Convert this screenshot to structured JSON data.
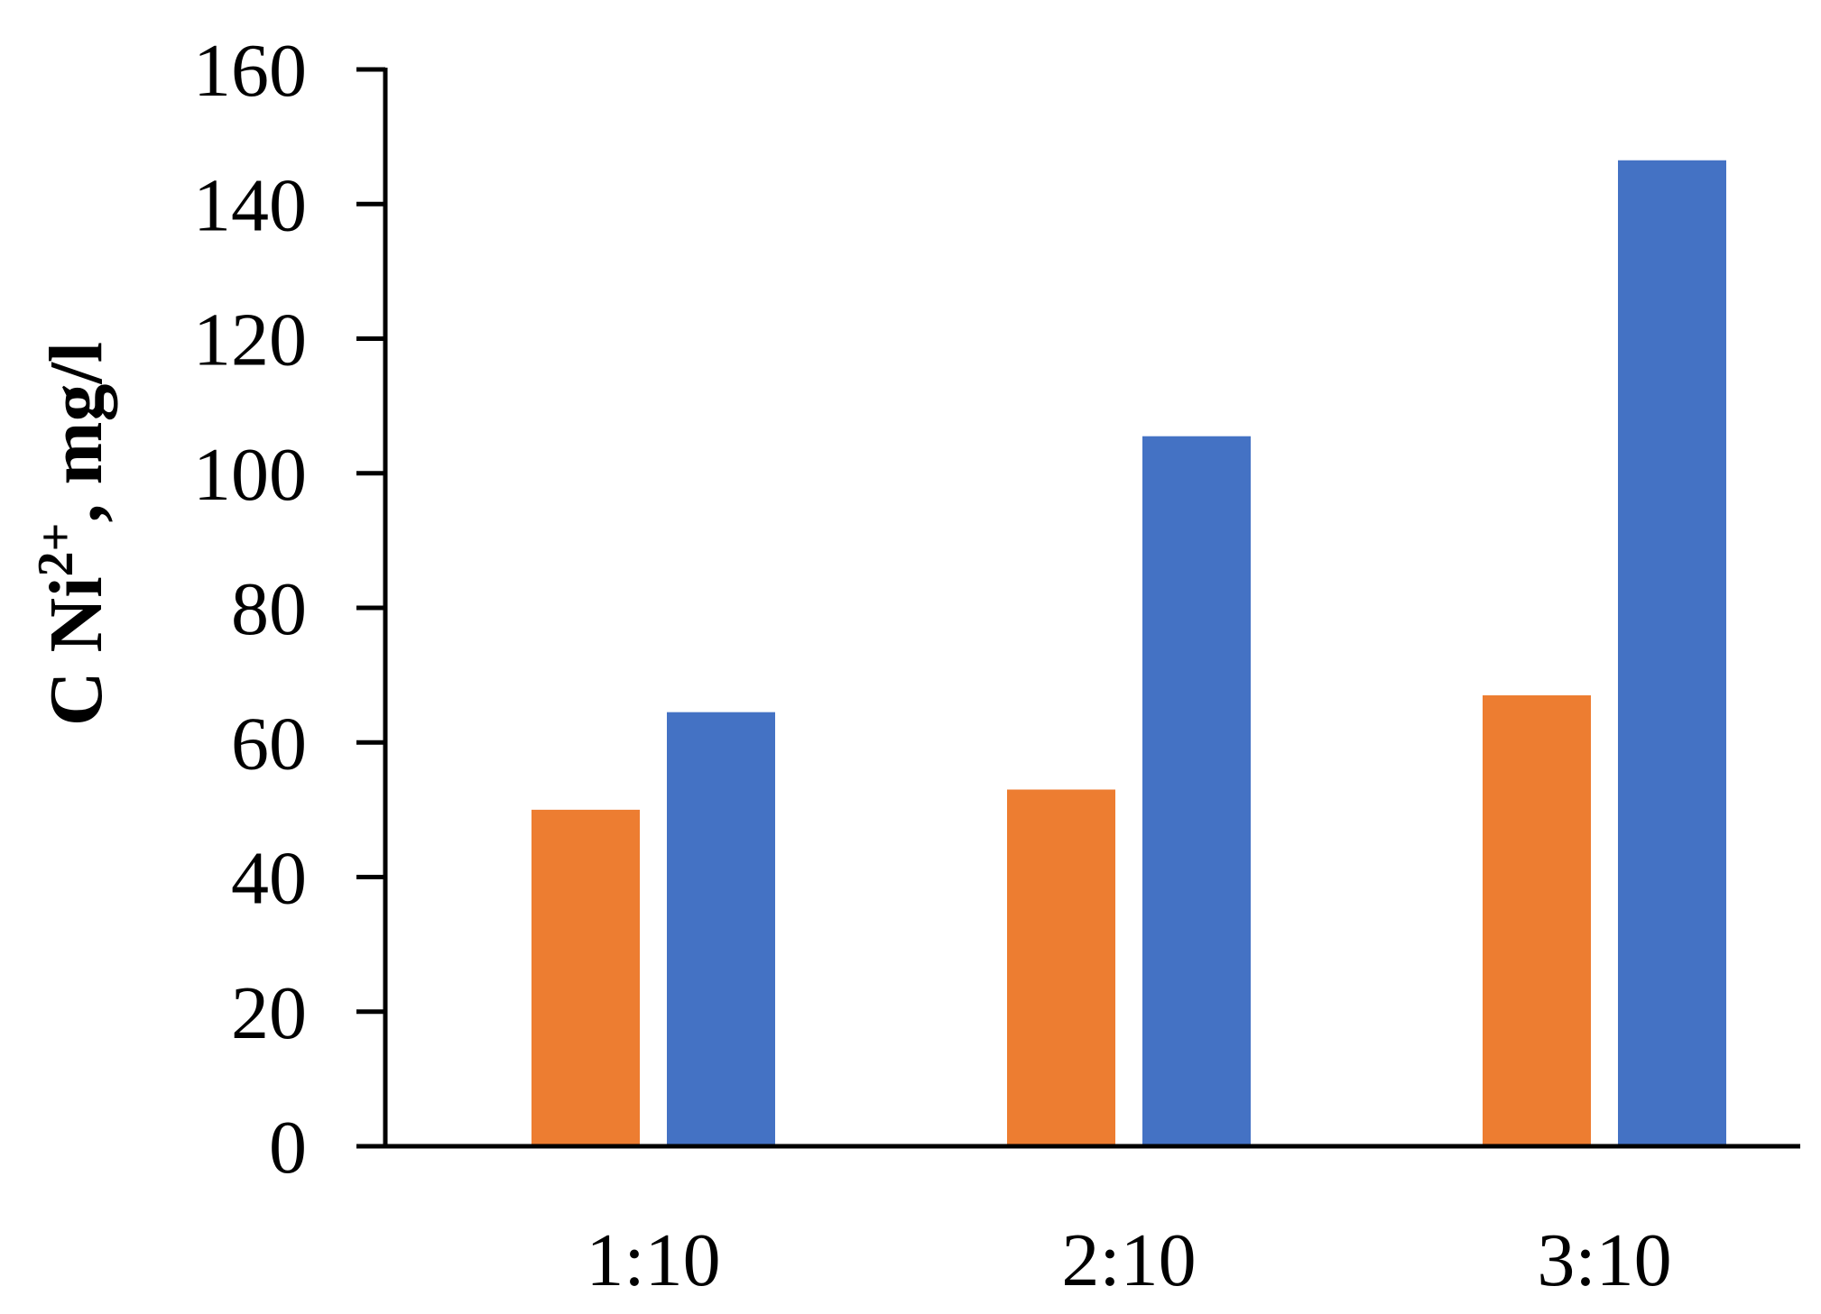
{
  "chart_data": {
    "type": "bar",
    "categories": [
      "1:10",
      "2:10",
      "3:10"
    ],
    "series": [
      {
        "color": "#ED7D31",
        "values": [
          50,
          53,
          67
        ]
      },
      {
        "color": "#4472C4",
        "values": [
          64.5,
          105.5,
          146.5
        ]
      }
    ],
    "title": "",
    "xlabel": "",
    "ylabel_parts": {
      "prefix": "C Ni",
      "superscript": "2+",
      "suffix": ", mg/l"
    },
    "ylim": [
      0,
      160
    ],
    "yticks": [
      0,
      20,
      40,
      60,
      80,
      100,
      120,
      140,
      160
    ],
    "ytick_labels": [
      "0",
      "20",
      "40",
      "60",
      "80",
      "100",
      "120",
      "140",
      "160"
    ],
    "grid": false,
    "legend": "none"
  }
}
